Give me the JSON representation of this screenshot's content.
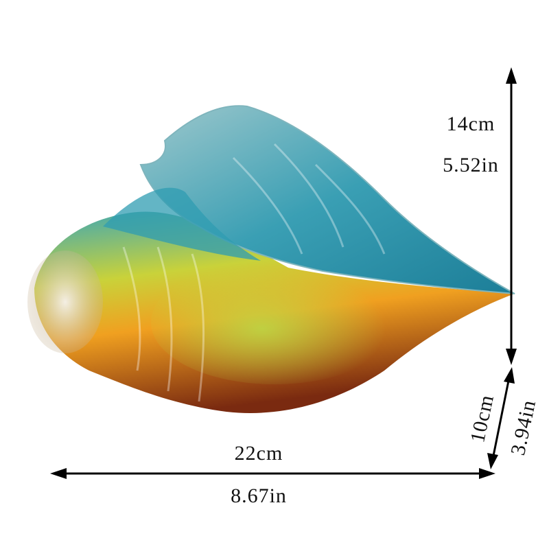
{
  "dimensions": {
    "height": {
      "cm": "14cm",
      "in": "5.52in"
    },
    "width": {
      "cm": "22cm",
      "in": "8.67in"
    },
    "depth": {
      "cm": "10cm",
      "in": "3.94in"
    }
  }
}
